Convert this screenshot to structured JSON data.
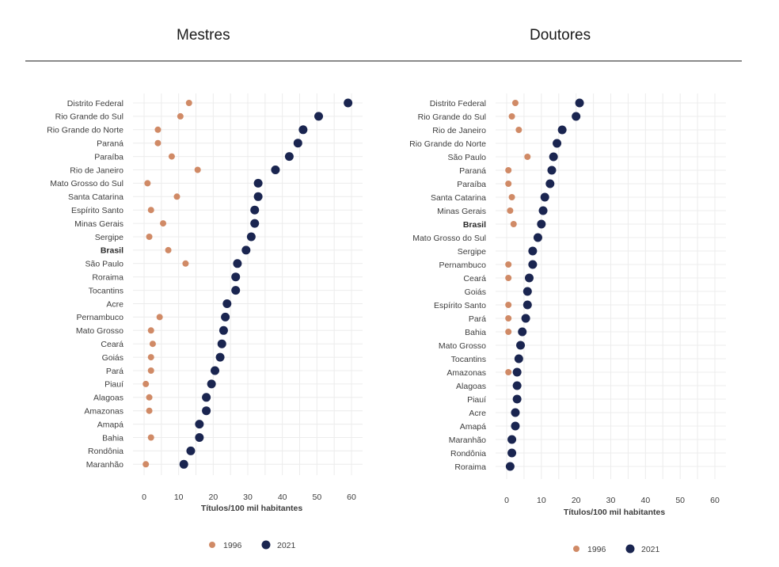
{
  "colors": {
    "y1996": "#d08a66",
    "y2021": "#1a2550"
  },
  "chart_data": [
    {
      "type": "scatter",
      "title": "Mestres",
      "xlabel": "Títulos/100 mil habitantes",
      "xlim": [
        0,
        60
      ],
      "xticks": [
        0,
        10,
        20,
        30,
        40,
        50,
        60
      ],
      "legend_position": "bottom",
      "series": [
        {
          "name": "1996"
        },
        {
          "name": "2021"
        }
      ],
      "categories": [
        "Distrito Federal",
        "Rio Grande do Sul",
        "Rio Grande do Norte",
        "Paraná",
        "Paraíba",
        "Rio de Janeiro",
        "Mato Grosso do Sul",
        "Santa Catarina",
        "Espírito Santo",
        "Minas Gerais",
        "Sergipe",
        "Brasil",
        "São Paulo",
        "Roraima",
        "Tocantins",
        "Acre",
        "Pernambuco",
        "Mato Grosso",
        "Ceará",
        "Goiás",
        "Pará",
        "Piauí",
        "Alagoas",
        "Amazonas",
        "Amapá",
        "Bahia",
        "Rondônia",
        "Maranhão"
      ],
      "values_1996": [
        13,
        10.5,
        4,
        4,
        8,
        15.5,
        1,
        9.5,
        2,
        5.5,
        1.5,
        7,
        12,
        null,
        null,
        null,
        4.5,
        2,
        2.5,
        2,
        2,
        0.5,
        1.5,
        1.5,
        null,
        2,
        null,
        0.5
      ],
      "values_2021": [
        59,
        50.5,
        46,
        44.5,
        42,
        38,
        33,
        33,
        32,
        32,
        31,
        29.5,
        27,
        26.5,
        26.5,
        24,
        23.5,
        23,
        22.5,
        22,
        20.5,
        19.5,
        18,
        18,
        16,
        16,
        13.5,
        11.5
      ],
      "bold_category": "Brasil"
    },
    {
      "type": "scatter",
      "title": "Doutores",
      "xlabel": "Títulos/100 mil habitantes",
      "xlim": [
        0,
        60
      ],
      "xticks": [
        0,
        10,
        20,
        30,
        40,
        50,
        60
      ],
      "legend_position": "bottom",
      "series": [
        {
          "name": "1996"
        },
        {
          "name": "2021"
        }
      ],
      "categories": [
        "Distrito Federal",
        "Rio Grande do Sul",
        "Rio de Janeiro",
        "Rio Grande do Norte",
        "São Paulo",
        "Paraná",
        "Paraíba",
        "Santa Catarina",
        "Minas Gerais",
        "Brasil",
        "Mato Grosso do Sul",
        "Sergipe",
        "Pernambuco",
        "Ceará",
        "Goiás",
        "Espírito Santo",
        "Pará",
        "Bahia",
        "Mato Grosso",
        "Tocantins",
        "Amazonas",
        "Alagoas",
        "Piauí",
        "Acre",
        "Amapá",
        "Maranhão",
        "Rondônia",
        "Roraima"
      ],
      "values_1996": [
        2.5,
        1.5,
        3.5,
        null,
        6,
        0.5,
        0.5,
        1.5,
        1,
        2,
        null,
        null,
        0.5,
        0.5,
        null,
        0.5,
        0.5,
        0.5,
        null,
        null,
        0.5,
        null,
        null,
        null,
        null,
        null,
        null,
        null
      ],
      "values_2021": [
        21,
        20,
        16,
        14.5,
        13.5,
        13,
        12.5,
        11,
        10.5,
        10,
        9,
        7.5,
        7.5,
        6.5,
        6,
        6,
        5.5,
        4.5,
        4,
        3.5,
        3,
        3,
        3,
        2.5,
        2.5,
        1.5,
        1.5,
        1
      ]
    }
  ]
}
